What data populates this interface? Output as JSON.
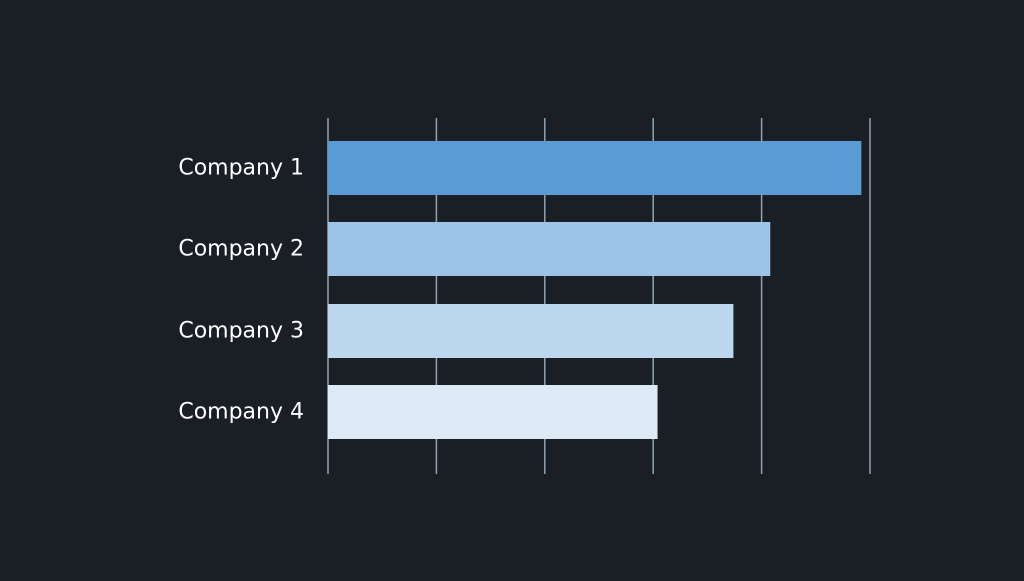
{
  "colors": {
    "background": "#1a1f25",
    "gridline": "#8fa3b1",
    "label": "#ffffff"
  },
  "chart_data": {
    "type": "bar",
    "orientation": "horizontal",
    "categories": [
      "Company 1",
      "Company 2",
      "Company 3",
      "Company 4"
    ],
    "values": [
      4.92,
      4.08,
      3.74,
      3.04
    ],
    "bar_colors": [
      "#5b9bd5",
      "#9dc3e6",
      "#bdd7ee",
      "#deebf7"
    ],
    "xlim": [
      0,
      5
    ],
    "grid": true,
    "legend": "none",
    "title": "",
    "xlabel": "",
    "ylabel": ""
  }
}
